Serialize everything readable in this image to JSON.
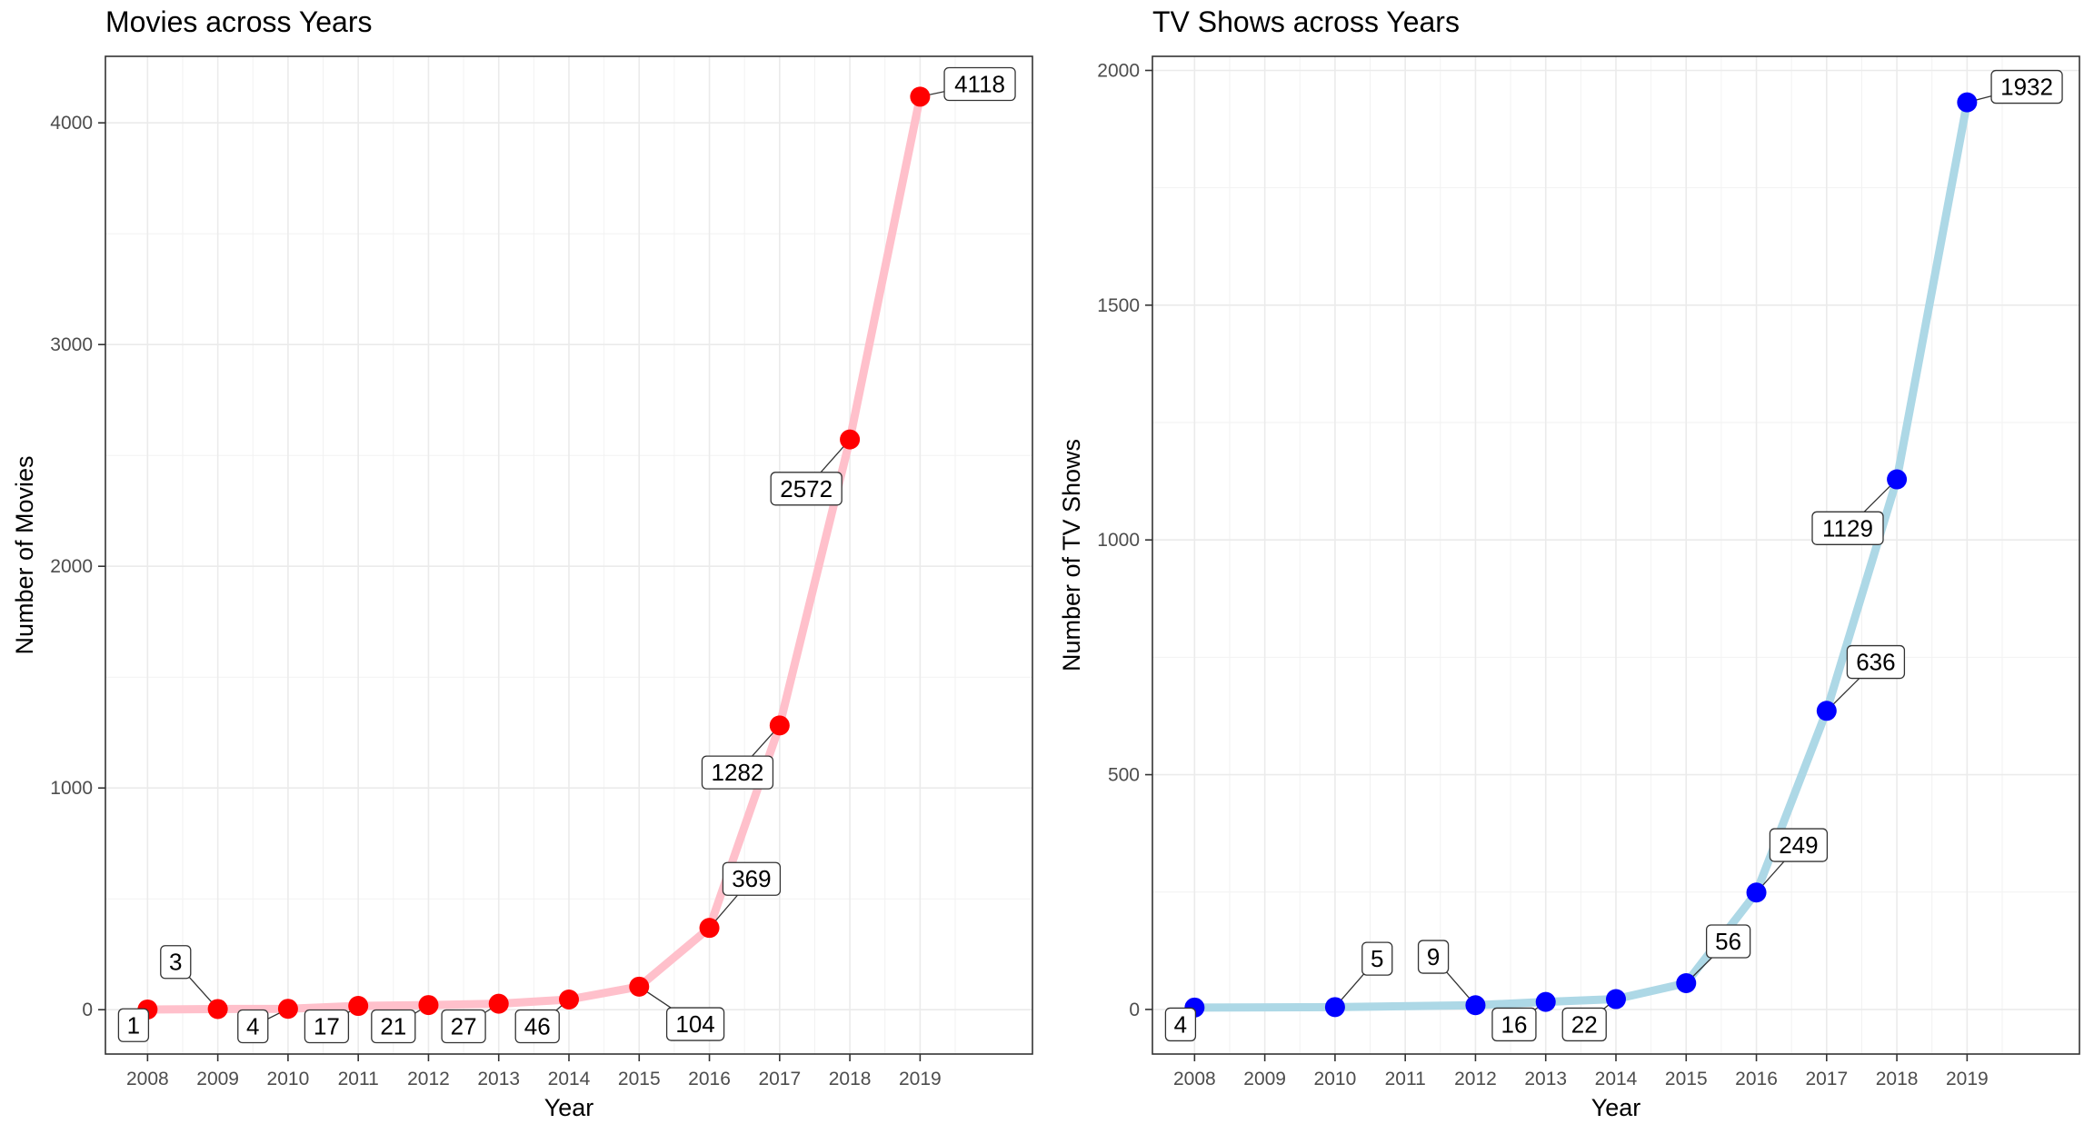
{
  "chart_data": [
    {
      "type": "line",
      "title": "Movies across Years",
      "xlabel": "Year",
      "ylabel": "Number of Movies",
      "x": [
        2008,
        2009,
        2010,
        2011,
        2012,
        2013,
        2014,
        2015,
        2016,
        2017,
        2018,
        2019
      ],
      "x_tick_labels": [
        "2008",
        "2009",
        "2010",
        "2011",
        "2012",
        "2013",
        "2014",
        "2015",
        "2016",
        "2017",
        "2018",
        "2019"
      ],
      "xlim": [
        2007.4,
        2020.6
      ],
      "ylim": [
        -200,
        4300
      ],
      "y_ticks": [
        0,
        1000,
        2000,
        3000,
        4000
      ],
      "grid": true,
      "series": [
        {
          "points": [
            {
              "x": 2008,
              "y": 1
            },
            {
              "x": 2009,
              "y": 3
            },
            {
              "x": 2010,
              "y": 4
            },
            {
              "x": 2011,
              "y": 17
            },
            {
              "x": 2012,
              "y": 21
            },
            {
              "x": 2013,
              "y": 27
            },
            {
              "x": 2014,
              "y": 46
            },
            {
              "x": 2015,
              "y": 104
            },
            {
              "x": 2016,
              "y": 369
            },
            {
              "x": 2017,
              "y": 1282
            },
            {
              "x": 2018,
              "y": 2572
            },
            {
              "x": 2019,
              "y": 4118
            }
          ],
          "line_color": "#FFC0CB",
          "point_color": "#FF0000"
        }
      ],
      "data_labels": [
        {
          "x": 2007.8,
          "y": -70,
          "text": "1"
        },
        {
          "x": 2008.4,
          "y": 215,
          "text": "3"
        },
        {
          "x": 2009.5,
          "y": -75,
          "text": "4"
        },
        {
          "x": 2010.55,
          "y": -75,
          "text": "17"
        },
        {
          "x": 2011.5,
          "y": -75,
          "text": "21"
        },
        {
          "x": 2012.5,
          "y": -75,
          "text": "27"
        },
        {
          "x": 2013.55,
          "y": -75,
          "text": "46"
        },
        {
          "x": 2015.8,
          "y": -65,
          "text": "104"
        },
        {
          "x": 2016.6,
          "y": 590,
          "text": "369"
        },
        {
          "x": 2016.4,
          "y": 1070,
          "text": "1282"
        },
        {
          "x": 2017.38,
          "y": 2350,
          "text": "2572"
        },
        {
          "x": 2019.85,
          "y": 4175,
          "text": "4118"
        }
      ]
    },
    {
      "type": "line",
      "title": "TV Shows across Years",
      "xlabel": "Year",
      "ylabel": "Number of TV Shows",
      "x": [
        2008,
        2010,
        2012,
        2013,
        2014,
        2015,
        2016,
        2017,
        2018,
        2019
      ],
      "x_tick_labels": [
        "2008",
        "2009",
        "2010",
        "2011",
        "2012",
        "2013",
        "2014",
        "2015",
        "2016",
        "2017",
        "2018",
        "2019"
      ],
      "x_ticks": [
        2008,
        2009,
        2010,
        2011,
        2012,
        2013,
        2014,
        2015,
        2016,
        2017,
        2018,
        2019
      ],
      "xlim": [
        2007.4,
        2020.6
      ],
      "ylim": [
        -95,
        2030
      ],
      "y_ticks": [
        0,
        500,
        1000,
        1500,
        2000
      ],
      "grid": true,
      "series": [
        {
          "points": [
            {
              "x": 2008,
              "y": 4
            },
            {
              "x": 2010,
              "y": 5
            },
            {
              "x": 2012,
              "y": 9
            },
            {
              "x": 2013,
              "y": 16
            },
            {
              "x": 2014,
              "y": 22
            },
            {
              "x": 2015,
              "y": 56
            },
            {
              "x": 2016,
              "y": 249
            },
            {
              "x": 2017,
              "y": 636
            },
            {
              "x": 2018,
              "y": 1129
            },
            {
              "x": 2019,
              "y": 1932
            }
          ],
          "line_color": "#ADD8E6",
          "point_color": "#0000FF"
        }
      ],
      "data_labels": [
        {
          "x": 2007.8,
          "y": -32,
          "text": "4"
        },
        {
          "x": 2010.6,
          "y": 108,
          "text": "5"
        },
        {
          "x": 2011.4,
          "y": 112,
          "text": "9"
        },
        {
          "x": 2012.55,
          "y": -32,
          "text": "16"
        },
        {
          "x": 2013.55,
          "y": -32,
          "text": "22"
        },
        {
          "x": 2015.6,
          "y": 145,
          "text": "56"
        },
        {
          "x": 2016.6,
          "y": 350,
          "text": "249"
        },
        {
          "x": 2017.7,
          "y": 740,
          "text": "636"
        },
        {
          "x": 2017.3,
          "y": 1025,
          "text": "1129"
        },
        {
          "x": 2019.85,
          "y": 1965,
          "text": "1932"
        }
      ]
    }
  ]
}
